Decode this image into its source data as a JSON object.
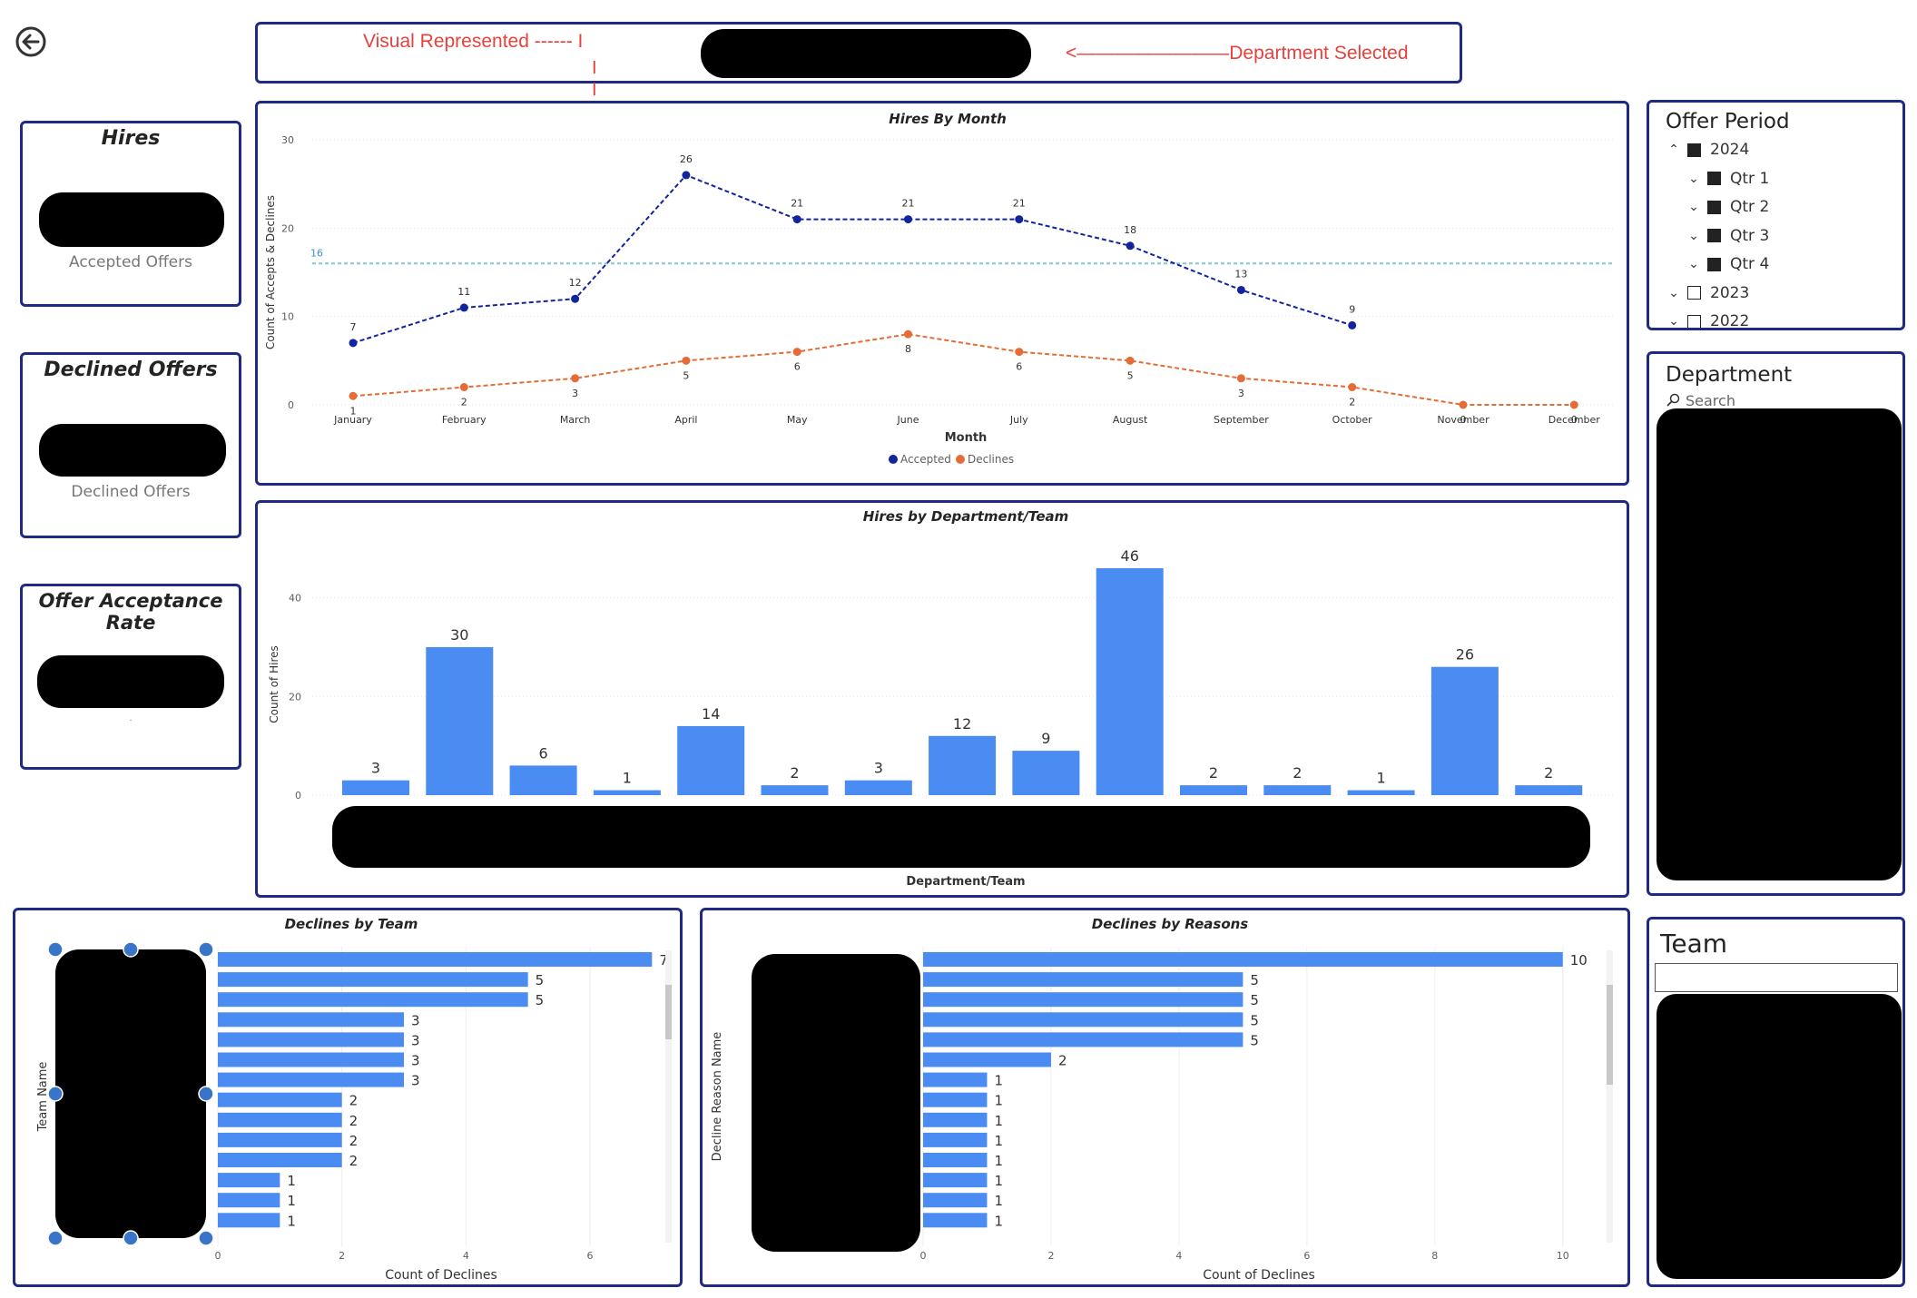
{
  "back_icon": "arrow-left-circle-icon",
  "annotations": {
    "visual_represented": "Visual Represented ------ I",
    "i1": "I",
    "i2": "I",
    "v": "V",
    "department_selected": "<————————Department Selected",
    "color": "#e8413c"
  },
  "kpis": {
    "hires": {
      "title": "Hires",
      "subtitle": "Accepted Offers"
    },
    "declined": {
      "title": "Declined Offers",
      "subtitle": "Declined Offers"
    },
    "acceptance": {
      "title": "Offer Acceptance Rate",
      "subtitle": "."
    }
  },
  "offer_period": {
    "title": "Offer Period",
    "items": [
      {
        "label": "2024",
        "chevron": "^",
        "checked": true
      },
      {
        "label": "Qtr 1",
        "chevron": "v",
        "checked": true
      },
      {
        "label": "Qtr 2",
        "chevron": "v",
        "checked": true
      },
      {
        "label": "Qtr 3",
        "chevron": "v",
        "checked": true
      },
      {
        "label": "Qtr 4",
        "chevron": "v",
        "checked": true
      },
      {
        "label": "2023",
        "chevron": "v",
        "checked": false
      },
      {
        "label": "2022",
        "chevron": "v",
        "checked": false
      }
    ]
  },
  "department_slicer": {
    "title": "Department",
    "search_placeholder": "Search",
    "search_icon": "search-icon"
  },
  "team_slicer": {
    "title": "Team"
  },
  "colors": {
    "accepted": "#12239e",
    "declines": "#e66c37",
    "bar": "#4a8cf2",
    "avg_line": "#7fc8dc",
    "border": "#1f2a83"
  },
  "chart_data": [
    {
      "type": "line",
      "title": "Hires By Month",
      "xlabel": "Month",
      "ylabel": "Count of Accepts & Declines",
      "ylim": [
        0,
        30
      ],
      "yticks": [
        0,
        10,
        20,
        30
      ],
      "categories": [
        "January",
        "February",
        "March",
        "April",
        "May",
        "June",
        "July",
        "August",
        "September",
        "October",
        "November",
        "December"
      ],
      "series": [
        {
          "name": "Accepted",
          "values": [
            7,
            11,
            12,
            26,
            21,
            21,
            21,
            18,
            13,
            9,
            null,
            null
          ]
        },
        {
          "name": "Declines",
          "values": [
            1,
            2,
            3,
            5,
            6,
            8,
            6,
            5,
            3,
            2,
            0,
            0
          ]
        }
      ],
      "reference_line": {
        "value": 16,
        "label": "16"
      },
      "legend": "bottom-center",
      "grid": true
    },
    {
      "type": "bar",
      "title": "Hires by Department/Team",
      "xlabel": "Department/Team",
      "ylabel": "Count of Hires",
      "ylim": [
        0,
        46
      ],
      "yticks": [
        0,
        20,
        40
      ],
      "values": [
        3,
        30,
        6,
        1,
        14,
        2,
        3,
        12,
        9,
        46,
        2,
        2,
        1,
        26,
        2
      ],
      "grid": true
    },
    {
      "type": "bar",
      "orientation": "horizontal",
      "title": "Declines by Team",
      "xlabel": "Count of Declines",
      "ylabel": "Team Name",
      "xlim": [
        0,
        7.2
      ],
      "xticks": [
        0,
        2,
        4,
        6
      ],
      "values": [
        7,
        5,
        5,
        3,
        3,
        3,
        3,
        2,
        2,
        2,
        2,
        1,
        1,
        1
      ]
    },
    {
      "type": "bar",
      "orientation": "horizontal",
      "title": "Declines by Reasons",
      "xlabel": "Count of Declines",
      "ylabel": "Decline Reason Name",
      "xlim": [
        0,
        10.5
      ],
      "xticks": [
        0,
        2,
        4,
        6,
        8,
        10
      ],
      "values": [
        10,
        5,
        5,
        5,
        5,
        2,
        1,
        1,
        1,
        1,
        1,
        1,
        1,
        1
      ]
    }
  ]
}
